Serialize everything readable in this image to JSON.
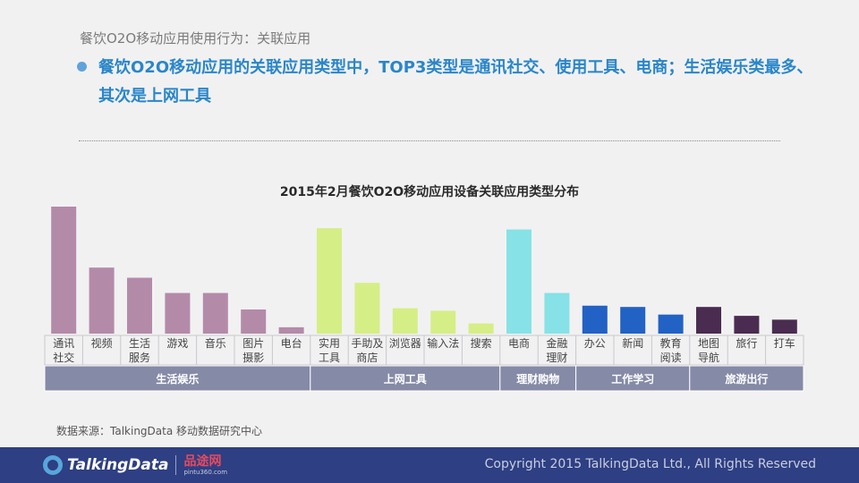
{
  "header": {
    "subtitle": "餐饮O2O移动应用使用行为：关联应用",
    "headline_line1": "餐饮O2O移动应用的关联应用类型中，TOP3类型是通讯社交、使用工具、电商；生活娱乐类最多、",
    "headline_line2": "其次是上网工具"
  },
  "colors": {
    "life": "#b48aa9",
    "web": "#d6ee86",
    "shop": "#86e2e6",
    "work": "#2262c4",
    "travel": "#4a2c51",
    "group_band": "#858aa7",
    "footer": "#2e3f83"
  },
  "chart_data": {
    "type": "bar",
    "title": "2015年2月餐饮O2O移动应用设备关联应用类型分布",
    "xlabel": "",
    "ylabel": "",
    "ylim": [
      0,
      100
    ],
    "value_scale_note": "relative bar heights estimated (no axis or data labels shown); tallest bar = 100",
    "categories": [
      {
        "label": [
          "通讯",
          "社交"
        ],
        "value": 100,
        "group": 0
      },
      {
        "label": [
          "视频"
        ],
        "value": 52,
        "group": 0
      },
      {
        "label": [
          "生活",
          "服务"
        ],
        "value": 44,
        "group": 0
      },
      {
        "label": [
          "游戏"
        ],
        "value": 32,
        "group": 0
      },
      {
        "label": [
          "音乐"
        ],
        "value": 32,
        "group": 0
      },
      {
        "label": [
          "图片",
          "摄影"
        ],
        "value": 19,
        "group": 0
      },
      {
        "label": [
          "电台"
        ],
        "value": 5,
        "group": 0
      },
      {
        "label": [
          "实用",
          "工具"
        ],
        "value": 83,
        "group": 1
      },
      {
        "label": [
          "手助及",
          "商店"
        ],
        "value": 40,
        "group": 1
      },
      {
        "label": [
          "浏览器"
        ],
        "value": 20,
        "group": 1
      },
      {
        "label": [
          "输入法"
        ],
        "value": 18,
        "group": 1
      },
      {
        "label": [
          "搜索"
        ],
        "value": 8,
        "group": 1
      },
      {
        "label": [
          "电商"
        ],
        "value": 82,
        "group": 2
      },
      {
        "label": [
          "金融",
          "理财"
        ],
        "value": 32,
        "group": 2
      },
      {
        "label": [
          "办公"
        ],
        "value": 22,
        "group": 3
      },
      {
        "label": [
          "新闻"
        ],
        "value": 21,
        "group": 3
      },
      {
        "label": [
          "教育",
          "阅读"
        ],
        "value": 15,
        "group": 3
      },
      {
        "label": [
          "地图",
          "导航"
        ],
        "value": 21,
        "group": 4
      },
      {
        "label": [
          "旅行"
        ],
        "value": 14,
        "group": 4
      },
      {
        "label": [
          "打车"
        ],
        "value": 11,
        "group": 4
      }
    ],
    "groups": [
      {
        "name": "生活娱乐",
        "color_key": "life"
      },
      {
        "name": "上网工具",
        "color_key": "web"
      },
      {
        "name": "理财购物",
        "color_key": "shop"
      },
      {
        "name": "工作学习",
        "color_key": "work"
      },
      {
        "name": "旅游出行",
        "color_key": "travel"
      }
    ]
  },
  "footer": {
    "source": "数据来源：TalkingData 移动数据研究中心",
    "logo_text": "TalkingData",
    "partner_name": "品途网",
    "partner_url": "pintu360.com",
    "copyright": "Copyright 2015 TalkingData Ltd., All Rights Reserved"
  }
}
